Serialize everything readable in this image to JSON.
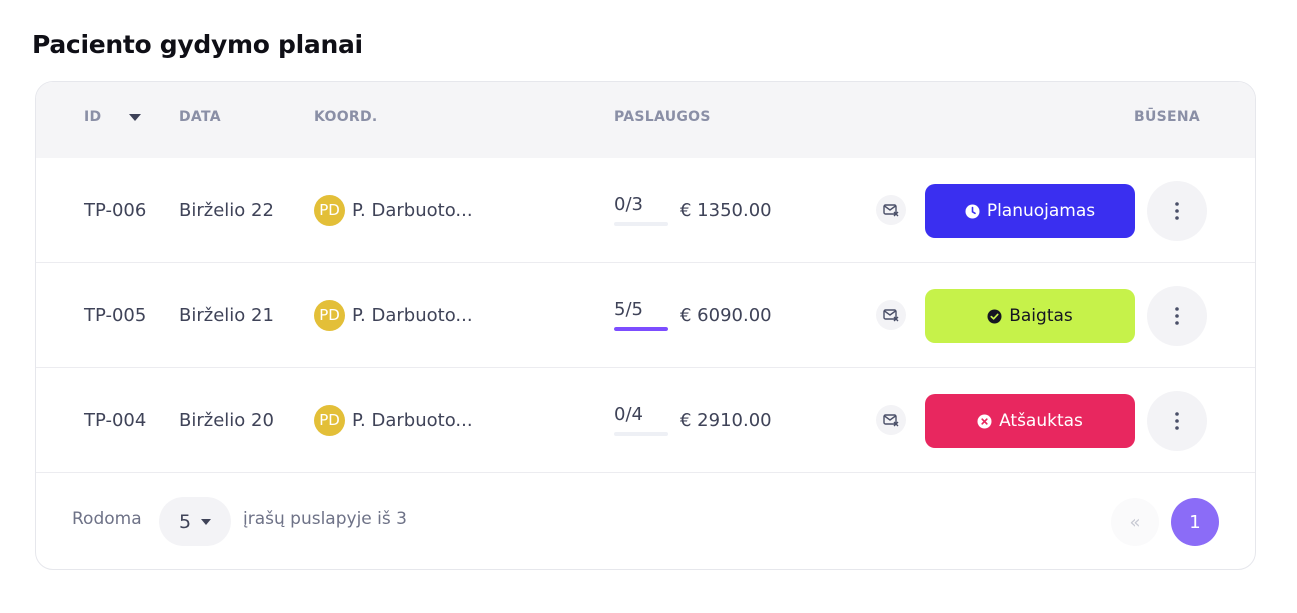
{
  "page": {
    "title": "Paciento gydymo planai"
  },
  "table": {
    "headers": {
      "id": "ID",
      "date": "DATA",
      "coord": "KOORD.",
      "services": "PASLAUGOS",
      "status": "BŪSENA"
    },
    "rows": [
      {
        "id": "TP-006",
        "date": "Birželio 22",
        "avatar": "PD",
        "coord": "P. Darbuoto...",
        "progress": "0/3",
        "progress_fraction": 0,
        "price": "€ 1350.00",
        "status": "Planuojamas",
        "status_color": "#3a2ff0",
        "status_text_color": "#ffffff",
        "status_icon": "clock-icon"
      },
      {
        "id": "TP-005",
        "date": "Birželio 21",
        "avatar": "PD",
        "coord": "P. Darbuoto...",
        "progress": "5/5",
        "progress_fraction": 1,
        "price": "€ 6090.00",
        "status": "Baigtas",
        "status_color": "#c6f24a",
        "status_text_color": "#151522",
        "status_icon": "check-circle-icon"
      },
      {
        "id": "TP-004",
        "date": "Birželio 20",
        "avatar": "PD",
        "coord": "P. Darbuoto...",
        "progress": "0/4",
        "progress_fraction": 0,
        "price": "€ 2910.00",
        "status": "Atšauktas",
        "status_color": "#e8275f",
        "status_text_color": "#ffffff",
        "status_icon": "x-circle-icon"
      }
    ]
  },
  "footer": {
    "showing": "Rodoma",
    "per_page": "5",
    "records_text": "įrašų puslapyje iš 3",
    "prev_icon": "«",
    "current_page": "1"
  }
}
